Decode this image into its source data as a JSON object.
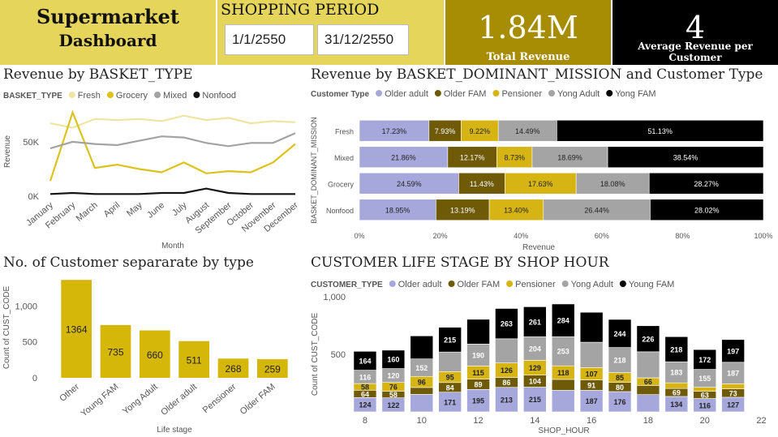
{
  "header": {
    "title_line1": "Supermarket",
    "title_line2": "Dashboard",
    "period_label": "SHOPPING PERIOD",
    "start_date": "1/1/2550",
    "end_date": "31/12/2550",
    "total_revenue": "1.84M",
    "total_revenue_label": "Total Revenue",
    "avg_revenue": "4",
    "avg_revenue_label": "Average Revenue per Customer"
  },
  "colors": {
    "fresh": "#efe5a3",
    "grocery": "#dcc21d",
    "mixed": "#a3a3a3",
    "nonfood": "#141414",
    "older_adult": "#a6a8dc",
    "older_fam": "#6e5a07",
    "pensioner": "#d5b414",
    "yong_adult": "#a4a4a4",
    "young_fam": "#000000",
    "bar": "#d5b70a"
  },
  "chart_data": [
    {
      "type": "line",
      "title": "Revenue by BASKET_TYPE",
      "legend_title": "BASKET_TYPE",
      "legend_position": "top-left",
      "xlabel": "Month",
      "ylabel": "Revenue",
      "x": [
        "January",
        "February",
        "March",
        "April",
        "May",
        "June",
        "July",
        "August",
        "September",
        "October",
        "November",
        "December"
      ],
      "y_ticks": [
        {
          "value": 0,
          "label": "0K"
        },
        {
          "value": 50000,
          "label": "50K"
        }
      ],
      "ylim": [
        0,
        82000
      ],
      "series": [
        {
          "name": "Fresh",
          "values": [
            67000,
            63000,
            71000,
            70000,
            71000,
            69000,
            74000,
            70000,
            72000,
            67000,
            69000,
            68000
          ]
        },
        {
          "name": "Grocery",
          "values": [
            14000,
            77000,
            26000,
            29000,
            25000,
            22000,
            31000,
            21000,
            23000,
            22000,
            31000,
            48000
          ]
        },
        {
          "name": "Mixed",
          "values": [
            44000,
            50000,
            48000,
            47000,
            51000,
            55000,
            54000,
            49000,
            46000,
            49000,
            49000,
            58000
          ]
        },
        {
          "name": "Nonfood",
          "values": [
            2000,
            3000,
            2000,
            2000,
            2000,
            3000,
            3000,
            7000,
            3000,
            2000,
            2000,
            2000
          ]
        }
      ]
    },
    {
      "type": "bar",
      "orientation": "horizontal-100%-stacked",
      "title": "Revenue by BASKET_DOMINANT_MISSION and Customer Type",
      "legend_title": "Customer Type",
      "legend_position": "top-left",
      "xlabel": "Revenue",
      "ylabel": "BASKET_DOMINANT_MISSION",
      "x_ticks": [
        "0%",
        "20%",
        "40%",
        "60%",
        "80%",
        "100%"
      ],
      "categories": [
        "Fresh",
        "Mixed",
        "Grocery",
        "Nonfood"
      ],
      "series": [
        {
          "name": "Older adult",
          "values": [
            17.23,
            21.86,
            24.59,
            18.95
          ],
          "labels": [
            "17.23%",
            "21.86%",
            "24.59%",
            "18.95%"
          ]
        },
        {
          "name": "Older FAM",
          "values": [
            7.93,
            12.17,
            11.43,
            13.19
          ],
          "labels": [
            "7.93%",
            "12.17%",
            "11.43%",
            "13.19%"
          ]
        },
        {
          "name": "Pensioner",
          "values": [
            9.22,
            8.73,
            17.63,
            13.4
          ],
          "labels": [
            "9.22%",
            "8.73%",
            "17.63%",
            "13.40%"
          ]
        },
        {
          "name": "Yong Adult",
          "values": [
            14.49,
            18.69,
            18.08,
            26.44
          ],
          "labels": [
            "14.49%",
            "18.69%",
            "18.08%",
            "26.44%"
          ]
        },
        {
          "name": "Yong FAM",
          "values": [
            51.13,
            38.54,
            28.27,
            28.02
          ],
          "labels": [
            "51.13%",
            "38.54%",
            "28.27%",
            "28.02%"
          ]
        }
      ]
    },
    {
      "type": "bar",
      "title": "No. of Customer separarate by type",
      "xlabel": "Life stage",
      "ylabel": "Count of CUST_CODE",
      "y_ticks": [
        {
          "value": 0,
          "label": "0"
        },
        {
          "value": 500,
          "label": "500"
        },
        {
          "value": 1000,
          "label": "1,000"
        }
      ],
      "ylim": [
        0,
        1400
      ],
      "categories": [
        "Other",
        "Young FAM",
        "Yong Adult",
        "Older adult",
        "Pensioner",
        "Older FAM"
      ],
      "values": [
        1364,
        735,
        660,
        511,
        268,
        259
      ],
      "labels": [
        "1364",
        "735",
        "660",
        "511",
        "268",
        "259"
      ]
    },
    {
      "type": "bar",
      "orientation": "vertical-stacked",
      "title": "CUSTOMER LIFE STAGE BY SHOP HOUR",
      "legend_title": "CUSTOMER_TYPE",
      "legend_position": "top-left",
      "xlabel": "SHOP_HOUR",
      "ylabel": "Count of CUST_CODE",
      "x_ticks": [
        {
          "value": 8,
          "label": "8"
        },
        {
          "value": 10,
          "label": "10"
        },
        {
          "value": 12,
          "label": "12"
        },
        {
          "value": 14,
          "label": "14"
        },
        {
          "value": 16,
          "label": "16"
        },
        {
          "value": 18,
          "label": "18"
        },
        {
          "value": 20,
          "label": "20"
        },
        {
          "value": 22,
          "label": "22"
        }
      ],
      "y_ticks": [
        {
          "value": 500,
          "label": "500"
        },
        {
          "value": 1000,
          "label": "1,000"
        }
      ],
      "xlim": [
        7.6,
        22.1
      ],
      "ylim": [
        0,
        1000
      ],
      "x": [
        8,
        9,
        10,
        11,
        12,
        13,
        14,
        15,
        16,
        17,
        18,
        19,
        20,
        21
      ],
      "series": [
        {
          "name": "Older adult",
          "values": [
            124,
            122,
            152,
            171,
            195,
            213,
            215,
            187,
            187,
            176,
            150,
            134,
            116,
            127
          ],
          "labels": [
            "124",
            "122",
            "",
            "171",
            "195",
            "213",
            "215",
            "",
            "187",
            "176",
            "",
            "134",
            "116",
            "127"
          ]
        },
        {
          "name": "Older FAM",
          "values": [
            64,
            58,
            60,
            84,
            89,
            86,
            104,
            95,
            91,
            80,
            80,
            69,
            63,
            73
          ],
          "labels": [
            "64",
            "58",
            "",
            "84",
            "89",
            "86",
            "104",
            "",
            "91",
            "80",
            "",
            "69",
            "63",
            "73"
          ]
        },
        {
          "name": "Pensioner",
          "values": [
            58,
            76,
            96,
            95,
            115,
            126,
            129,
            118,
            107,
            85,
            66,
            49,
            35,
            44
          ],
          "labels": [
            "58",
            "76",
            "96",
            "95",
            "115",
            "126",
            "129",
            "118",
            "107",
            "85",
            "66",
            "",
            "",
            ""
          ]
        },
        {
          "name": "Yong Adult",
          "values": [
            116,
            120,
            152,
            170,
            190,
            210,
            204,
            253,
            220,
            218,
            226,
            183,
            155,
            187
          ],
          "labels": [
            "116",
            "120",
            "152",
            "",
            "190",
            "",
            "204",
            "253",
            "",
            "218",
            "",
            "183",
            "155",
            "187"
          ]
        },
        {
          "name": "Young FAM",
          "values": [
            164,
            160,
            200,
            215,
            215,
            263,
            261,
            284,
            260,
            244,
            226,
            218,
            172,
            197
          ],
          "labels": [
            "164",
            "160",
            "",
            "215",
            "",
            "263",
            "261",
            "284",
            "",
            "244",
            "226",
            "218",
            "172",
            "197"
          ]
        }
      ]
    }
  ]
}
